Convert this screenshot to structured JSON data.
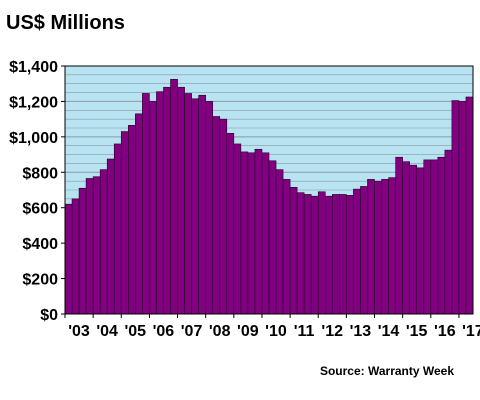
{
  "chart_data": {
    "type": "bar",
    "title": "US$ Millions",
    "source": "Source: Warranty Week",
    "ylim": [
      0,
      1400
    ],
    "y_ticks": [
      "$0",
      "$200",
      "$400",
      "$600",
      "$800",
      "$1,000",
      "$1,200",
      "$1,400"
    ],
    "y_tick_values": [
      0,
      200,
      400,
      600,
      800,
      1000,
      1200,
      1400
    ],
    "x_tick_labels": [
      "'03",
      "'04",
      "'05",
      "'06",
      "'07",
      "'08",
      "'09",
      "'10",
      "'11",
      "'12",
      "'13",
      "'14",
      "'15",
      "'16",
      "'17"
    ],
    "quarters_per_year": 4,
    "grid": "horizontal",
    "bar_color": "#800080",
    "plot_background": "#b8e3f0",
    "grid_color": "#8a9aa5",
    "values": [
      620,
      650,
      710,
      765,
      775,
      815,
      875,
      960,
      1030,
      1065,
      1130,
      1245,
      1200,
      1255,
      1280,
      1325,
      1280,
      1245,
      1215,
      1235,
      1200,
      1115,
      1100,
      1020,
      960,
      915,
      910,
      930,
      910,
      865,
      815,
      760,
      715,
      685,
      675,
      665,
      690,
      665,
      675,
      675,
      670,
      705,
      720,
      760,
      750,
      760,
      770,
      885,
      860,
      840,
      825,
      870,
      870,
      885,
      925,
      1205,
      1200,
      1225
    ]
  }
}
